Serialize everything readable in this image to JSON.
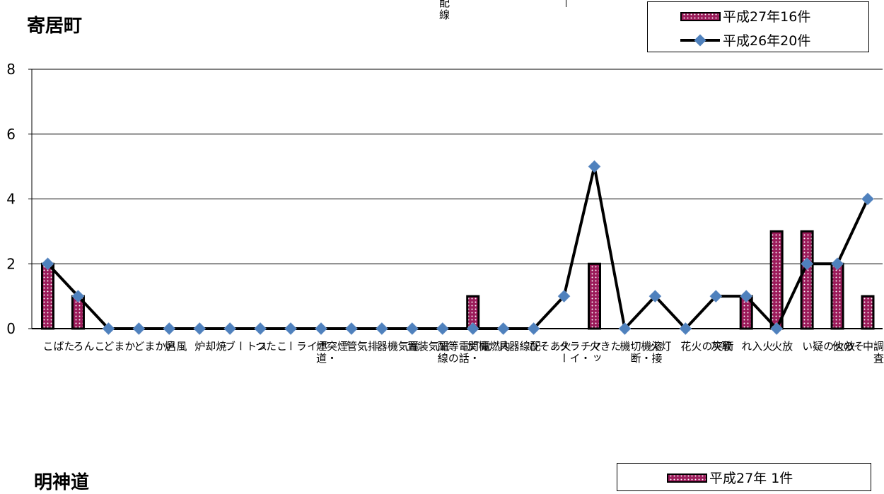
{
  "top_fragment": {
    "text": "配線"
  },
  "chart_title": "寄居町",
  "legend": {
    "bar_label": "平成27年16件",
    "line_label": "平成26年20件"
  },
  "next_panel": {
    "title": "明神道",
    "legend_label": "平成27年 1件"
  },
  "colors": {
    "bar_fill": "#9b1b5a",
    "bar_dots": "#ffffff",
    "bar_stroke": "#000000",
    "line": "#000000",
    "marker": "#4f81bd",
    "grid": "#000000"
  },
  "chart_data": {
    "type": "bar",
    "ylim": [
      0,
      8
    ],
    "yticks": [
      "0",
      "2",
      "4",
      "6",
      "8"
    ],
    "categories": [
      "たばこ",
      "こんろ",
      "かまど",
      "風呂かまど",
      "炉",
      "焼却炉",
      "ストーブ",
      "こたつ",
      "ボイラー",
      "煙突・煙道",
      "排気管",
      "電気機器",
      "電気装置",
      "電灯・電話等の配線",
      "内燃機関",
      "配線器具",
      "火あそび",
      "マッチ・ライター",
      "たき火",
      "溶接機・切断機",
      "灯火",
      "衝突の火花",
      "取灰",
      "火入れ",
      "放火",
      "放火の疑い",
      "その他",
      "不明・調査中"
    ],
    "series": [
      {
        "name": "平成27年16件",
        "type": "bar",
        "values": [
          2,
          1,
          0,
          0,
          0,
          0,
          0,
          0,
          0,
          0,
          0,
          0,
          0,
          0,
          1,
          0,
          0,
          0,
          2,
          0,
          0,
          0,
          0,
          1,
          3,
          3,
          2,
          1
        ]
      },
      {
        "name": "平成26年20件",
        "type": "line",
        "values": [
          2,
          1,
          0,
          0,
          0,
          0,
          0,
          0,
          0,
          0,
          0,
          0,
          0,
          0,
          0,
          0,
          0,
          1,
          5,
          0,
          1,
          0,
          1,
          1,
          0,
          2,
          2,
          4
        ]
      }
    ]
  }
}
